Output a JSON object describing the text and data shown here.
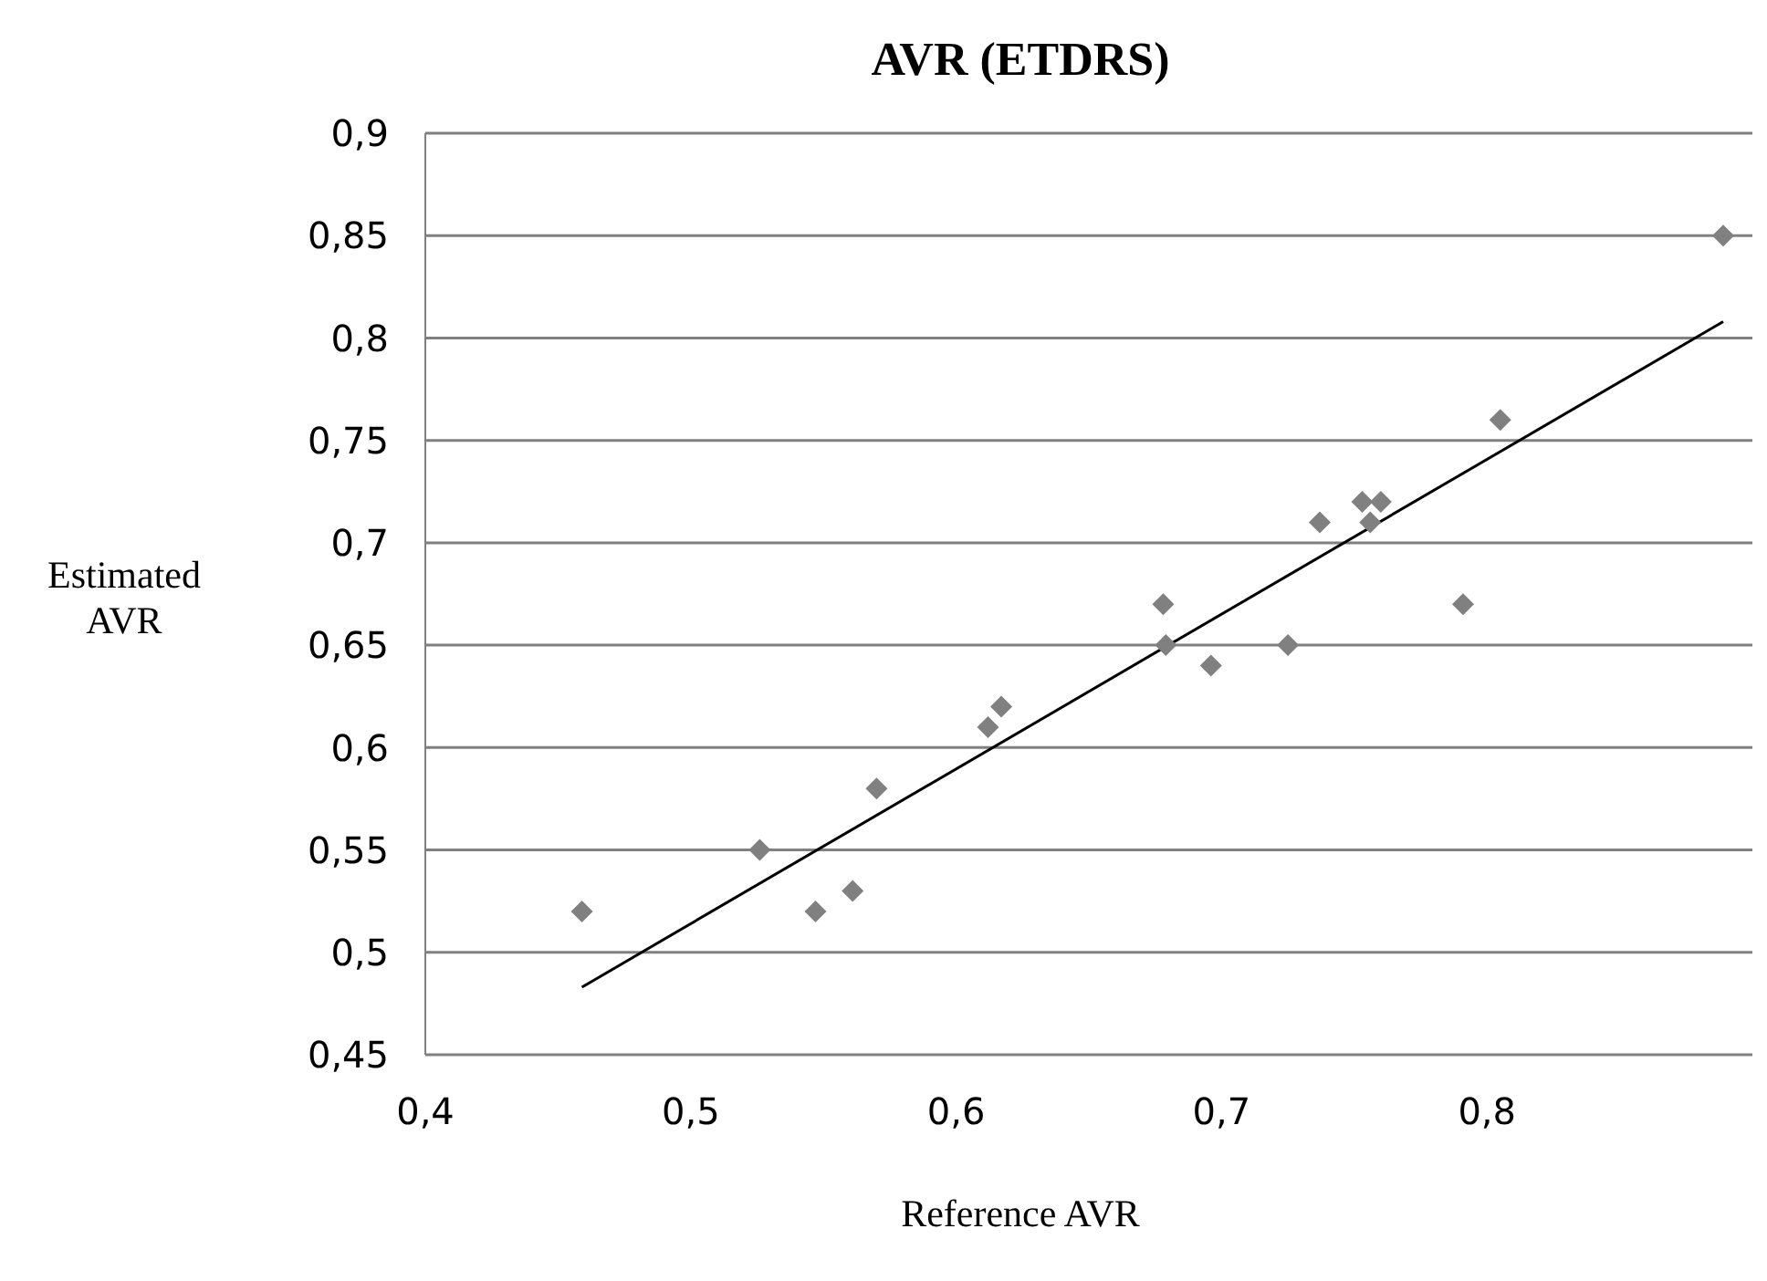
{
  "chart_data": {
    "type": "scatter",
    "title": "AVR (ETDRS)",
    "xlabel": "Reference AVR",
    "ylabel": "Estimated AVR",
    "xlim": [
      0.4,
      0.9
    ],
    "xticks": [
      {
        "value": 0.4,
        "label": "0,4"
      },
      {
        "value": 0.5,
        "label": "0,5"
      },
      {
        "value": 0.6,
        "label": "0,6"
      },
      {
        "value": 0.7,
        "label": "0,7"
      },
      {
        "value": 0.8,
        "label": "0,8"
      }
    ],
    "ylim": [
      0.45,
      0.9
    ],
    "yticks": [
      {
        "value": 0.45,
        "label": "0,45"
      },
      {
        "value": 0.5,
        "label": "0,5"
      },
      {
        "value": 0.55,
        "label": "0,55"
      },
      {
        "value": 0.6,
        "label": "0,6"
      },
      {
        "value": 0.65,
        "label": "0,65"
      },
      {
        "value": 0.7,
        "label": "0,7"
      },
      {
        "value": 0.75,
        "label": "0,75"
      },
      {
        "value": 0.8,
        "label": "0,8"
      },
      {
        "value": 0.85,
        "label": "0,85"
      },
      {
        "value": 0.9,
        "label": "0,9"
      }
    ],
    "grid": "y",
    "series": [
      {
        "color": "#808080",
        "marker": "diamond",
        "x": [
          0.459,
          0.526,
          0.547,
          0.561,
          0.57,
          0.612,
          0.617,
          0.678,
          0.679,
          0.696,
          0.725,
          0.737,
          0.753,
          0.756,
          0.76,
          0.791,
          0.805,
          0.889
        ],
        "values": [
          0.52,
          0.55,
          0.52,
          0.53,
          0.58,
          0.61,
          0.62,
          0.67,
          0.65,
          0.64,
          0.65,
          0.71,
          0.72,
          0.71,
          0.72,
          0.67,
          0.76,
          0.85
        ]
      },
      {
        "type": "line",
        "color": "#000000",
        "marker": "none",
        "line_style": "solid",
        "x": [
          0.459,
          0.889
        ],
        "values": [
          0.483,
          0.808
        ]
      }
    ]
  }
}
